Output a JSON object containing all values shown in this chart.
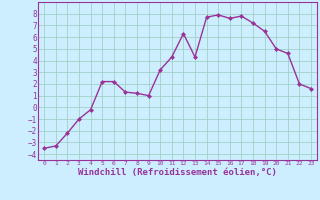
{
  "x": [
    0,
    1,
    2,
    3,
    4,
    5,
    6,
    7,
    8,
    9,
    10,
    11,
    12,
    13,
    14,
    15,
    16,
    17,
    18,
    19,
    20,
    21,
    22,
    23
  ],
  "y": [
    -3.5,
    -3.3,
    -2.2,
    -1.0,
    -0.2,
    2.2,
    2.2,
    1.3,
    1.2,
    1.0,
    3.2,
    4.3,
    6.3,
    4.3,
    7.7,
    7.9,
    7.6,
    7.8,
    7.2,
    6.5,
    5.0,
    4.6,
    2.0,
    1.6
  ],
  "line_color": "#993399",
  "marker": "D",
  "marker_size": 2.0,
  "linewidth": 1.0,
  "xlabel": "Windchill (Refroidissement éolien,°C)",
  "xlabel_fontsize": 6.5,
  "background_color": "#cceeff",
  "grid_color": "#99ccbb",
  "tick_color": "#993399",
  "label_color": "#993399",
  "xlim": [
    -0.5,
    23.5
  ],
  "ylim": [
    -4.5,
    9.0
  ],
  "yticks": [
    -4,
    -3,
    -2,
    -1,
    0,
    1,
    2,
    3,
    4,
    5,
    6,
    7,
    8
  ],
  "xticks": [
    0,
    1,
    2,
    3,
    4,
    5,
    6,
    7,
    8,
    9,
    10,
    11,
    12,
    13,
    14,
    15,
    16,
    17,
    18,
    19,
    20,
    21,
    22,
    23
  ]
}
